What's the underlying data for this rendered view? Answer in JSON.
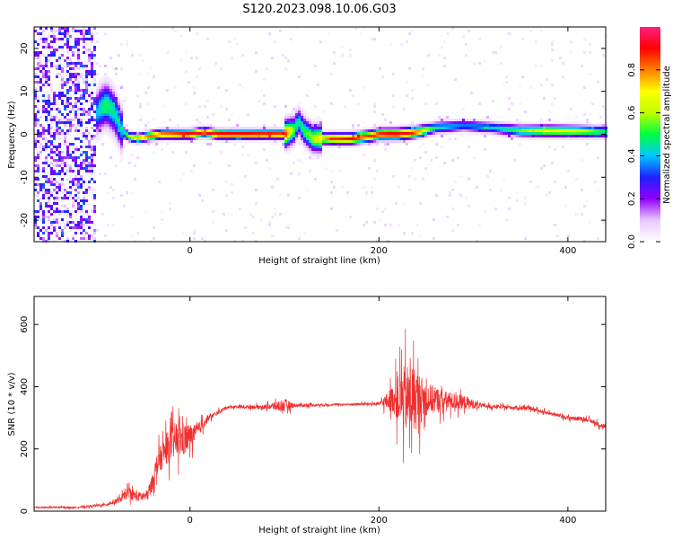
{
  "title": "S120.2023.098.10.06.G03",
  "chart_data": [
    {
      "type": "heatmap",
      "xlabel": "Height of straight line (km)",
      "ylabel": "Frequency (Hz)",
      "xlim": [
        -165,
        440
      ],
      "ylim": [
        -25,
        25
      ],
      "x_ticks": [
        0,
        200,
        400
      ],
      "y_ticks": [
        -20,
        -10,
        0,
        10,
        20
      ],
      "colorbar": {
        "label": "Normalized spectral amplitude",
        "range": [
          0,
          1
        ],
        "ticks": [
          0.0,
          0.2,
          0.4,
          0.6,
          0.8
        ],
        "colors": [
          "#ffffff",
          "#e8c8ff",
          "#9000ff",
          "#2020ff",
          "#00c8ff",
          "#00ff40",
          "#c0ff00",
          "#ffff00",
          "#ff8000",
          "#ff0000",
          "#ff2080"
        ]
      },
      "ridge": {
        "x": [
          -105,
          -95,
          -88,
          -80,
          -72,
          -65,
          -55,
          -45,
          -30,
          0,
          15,
          30,
          60,
          100,
          110,
          115,
          120,
          130,
          150,
          170,
          190,
          200,
          220,
          240,
          260,
          290,
          320,
          350,
          380,
          410,
          440
        ],
        "y": [
          3,
          6,
          7,
          5,
          1,
          -0.5,
          -1,
          -0.5,
          0,
          0,
          0.5,
          0,
          0,
          0,
          1,
          3,
          1,
          -1,
          -1,
          -1,
          -0.5,
          0,
          0,
          0.5,
          1.5,
          2,
          1.5,
          0.8,
          0.8,
          0.7,
          0.6
        ],
        "amp": [
          0.3,
          0.45,
          0.5,
          0.45,
          0.4,
          0.6,
          0.75,
          0.8,
          0.85,
          0.95,
          0.9,
          0.95,
          0.95,
          0.9,
          0.55,
          0.45,
          0.5,
          0.6,
          0.85,
          0.9,
          0.85,
          0.9,
          0.95,
          0.85,
          0.45,
          0.35,
          0.4,
          0.55,
          0.7,
          0.65,
          0.5
        ]
      }
    },
    {
      "type": "line",
      "xlabel": "Height of straight line (km)",
      "ylabel": "SNR (10 * v/v)",
      "xlim": [
        -165,
        440
      ],
      "ylim": [
        0,
        690
      ],
      "x_ticks": [
        0,
        200,
        400
      ],
      "y_ticks": [
        0,
        200,
        400,
        600
      ],
      "color": "#ee3030",
      "envelope": [
        {
          "x": -165,
          "mean": 12,
          "amp": 5
        },
        {
          "x": -120,
          "mean": 12,
          "amp": 6
        },
        {
          "x": -90,
          "mean": 20,
          "amp": 10
        },
        {
          "x": -75,
          "mean": 35,
          "amp": 20
        },
        {
          "x": -65,
          "mean": 60,
          "amp": 40
        },
        {
          "x": -55,
          "mean": 45,
          "amp": 35
        },
        {
          "x": -45,
          "mean": 50,
          "amp": 40
        },
        {
          "x": -40,
          "mean": 90,
          "amp": 60
        },
        {
          "x": -35,
          "mean": 150,
          "amp": 80
        },
        {
          "x": -25,
          "mean": 200,
          "amp": 110
        },
        {
          "x": -15,
          "mean": 230,
          "amp": 130
        },
        {
          "x": -5,
          "mean": 230,
          "amp": 120
        },
        {
          "x": 5,
          "mean": 250,
          "amp": 60
        },
        {
          "x": 20,
          "mean": 300,
          "amp": 20
        },
        {
          "x": 40,
          "mean": 335,
          "amp": 10
        },
        {
          "x": 80,
          "mean": 335,
          "amp": 15
        },
        {
          "x": 100,
          "mean": 340,
          "amp": 50
        },
        {
          "x": 110,
          "mean": 340,
          "amp": 15
        },
        {
          "x": 150,
          "mean": 342,
          "amp": 8
        },
        {
          "x": 200,
          "mean": 345,
          "amp": 10
        },
        {
          "x": 215,
          "mean": 360,
          "amp": 100
        },
        {
          "x": 225,
          "mean": 360,
          "amp": 230
        },
        {
          "x": 235,
          "mean": 360,
          "amp": 260
        },
        {
          "x": 250,
          "mean": 360,
          "amp": 120
        },
        {
          "x": 270,
          "mean": 355,
          "amp": 70
        },
        {
          "x": 290,
          "mean": 350,
          "amp": 50
        },
        {
          "x": 310,
          "mean": 338,
          "amp": 15
        },
        {
          "x": 360,
          "mean": 330,
          "amp": 12
        },
        {
          "x": 400,
          "mean": 300,
          "amp": 15
        },
        {
          "x": 420,
          "mean": 295,
          "amp": 15
        },
        {
          "x": 440,
          "mean": 270,
          "amp": 20
        }
      ]
    }
  ]
}
